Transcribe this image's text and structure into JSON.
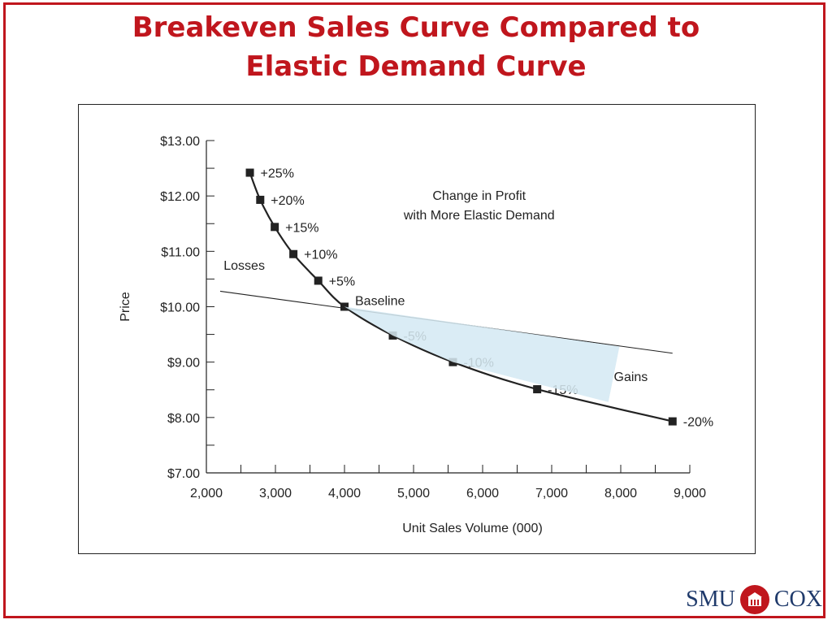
{
  "slide": {
    "title_line1": "Breakeven Sales Curve Compared to",
    "title_line2": "Elastic Demand Curve"
  },
  "logo": {
    "left_text": "SMU",
    "right_text": "COX",
    "seal_icon": "university-seal-icon"
  },
  "colors": {
    "accent": "#c0161d",
    "shade": "#d9ecf5",
    "line": "#222222"
  },
  "chart_data": {
    "type": "line",
    "title": "",
    "xlabel": "Unit Sales Volume (000)",
    "ylabel": "Price",
    "xlim": [
      2000,
      9000
    ],
    "ylim": [
      7,
      13
    ],
    "x_ticks": [
      2000,
      3000,
      4000,
      5000,
      6000,
      7000,
      8000,
      9000
    ],
    "x_tick_labels": [
      "2,000",
      "3,000",
      "4,000",
      "5,000",
      "6,000",
      "7,000",
      "8,000",
      "9,000"
    ],
    "y_ticks": [
      7,
      8,
      9,
      10,
      11,
      12,
      13
    ],
    "y_tick_labels": [
      "$7.00",
      "$8.00",
      "$9.00",
      "$10.00",
      "$11.00",
      "$12.00",
      "$13.00"
    ],
    "grid": false,
    "series": [
      {
        "kind": "breakeven-curve",
        "points": [
          {
            "x": 2630,
            "y": 12.42,
            "label": "+25%"
          },
          {
            "x": 2780,
            "y": 11.93,
            "label": "+20%"
          },
          {
            "x": 2990,
            "y": 11.44,
            "label": "+15%"
          },
          {
            "x": 3260,
            "y": 10.95,
            "label": "+10%"
          },
          {
            "x": 3620,
            "y": 10.47,
            "label": "+5%"
          },
          {
            "x": 4000,
            "y": 10.0,
            "label": "Baseline"
          },
          {
            "x": 4700,
            "y": 9.48,
            "label": "-5%"
          },
          {
            "x": 5570,
            "y": 9.0,
            "label": "-10%"
          },
          {
            "x": 6790,
            "y": 8.51,
            "label": "-15%"
          },
          {
            "x": 8750,
            "y": 7.93,
            "label": "-20%"
          }
        ]
      },
      {
        "kind": "elastic-demand-line",
        "points": [
          {
            "x": 2200,
            "y": 10.28
          },
          {
            "x": 8750,
            "y": 9.16
          }
        ]
      }
    ],
    "shaded_region": {
      "name": "gains",
      "polygon": [
        {
          "x": 4000,
          "y": 10.0
        },
        {
          "x": 7980,
          "y": 9.28
        },
        {
          "x": 7820,
          "y": 8.28
        },
        {
          "x": 5570,
          "y": 9.0
        },
        {
          "x": 4700,
          "y": 9.48
        }
      ]
    },
    "annotations": [
      {
        "text": "Change in Profit",
        "x": 5950,
        "y": 11.93
      },
      {
        "text": "with More Elastic Demand",
        "x": 5950,
        "y": 11.58
      },
      {
        "text": "Losses",
        "x": 2250,
        "y": 10.67
      },
      {
        "text": "Gains",
        "x": 7900,
        "y": 8.66
      }
    ]
  }
}
